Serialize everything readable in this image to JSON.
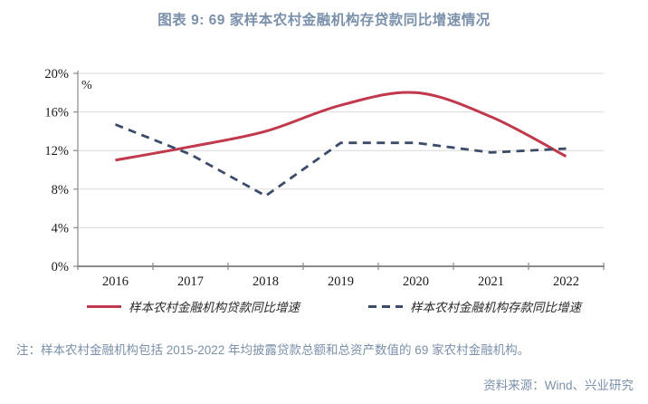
{
  "title": "图表 9:  69 家样本农村金融机构存贷款同比增速情况",
  "chart_data": {
    "type": "line",
    "categories": [
      "2016",
      "2017",
      "2018",
      "2019",
      "2020",
      "2021",
      "2022"
    ],
    "series": [
      {
        "name": "样本农村金融机构贷款同比增速",
        "style": "solid",
        "color": "#c0394c",
        "values": [
          11.0,
          12.4,
          14.0,
          16.7,
          18.0,
          15.5,
          11.4
        ]
      },
      {
        "name": "样本农村金融机构存款同比增速",
        "style": "dashed",
        "color": "#3c4b69",
        "values": [
          14.7,
          11.6,
          7.3,
          12.8,
          12.8,
          11.8,
          12.2
        ]
      }
    ],
    "title": "图表 9:  69 家样本农村金融机构存贷款同比增速情况",
    "xlabel": "",
    "ylabel": "%",
    "ylim": [
      0,
      20
    ],
    "ytick_step": 4,
    "ytick_suffix": "%",
    "grid": true,
    "legend_position": "bottom"
  },
  "legend": {
    "items": [
      {
        "label": "样本农村金融机构贷款同比增速"
      },
      {
        "label": "样本农村金融机构存款同比增速"
      }
    ]
  },
  "note": "注：样本农村金融机构包括 2015-2022 年均披露贷款总额和总资产数值的 69 家农村金融机构。",
  "source": "资料来源：Wind、兴业研究",
  "colors": {
    "accent_red": "#c0394c",
    "accent_navy": "#3c4b69",
    "heading": "#7b90aa",
    "grid": "#d9d9d9",
    "axis": "#8a8a8a",
    "tick_text": "#1a1a1a"
  }
}
